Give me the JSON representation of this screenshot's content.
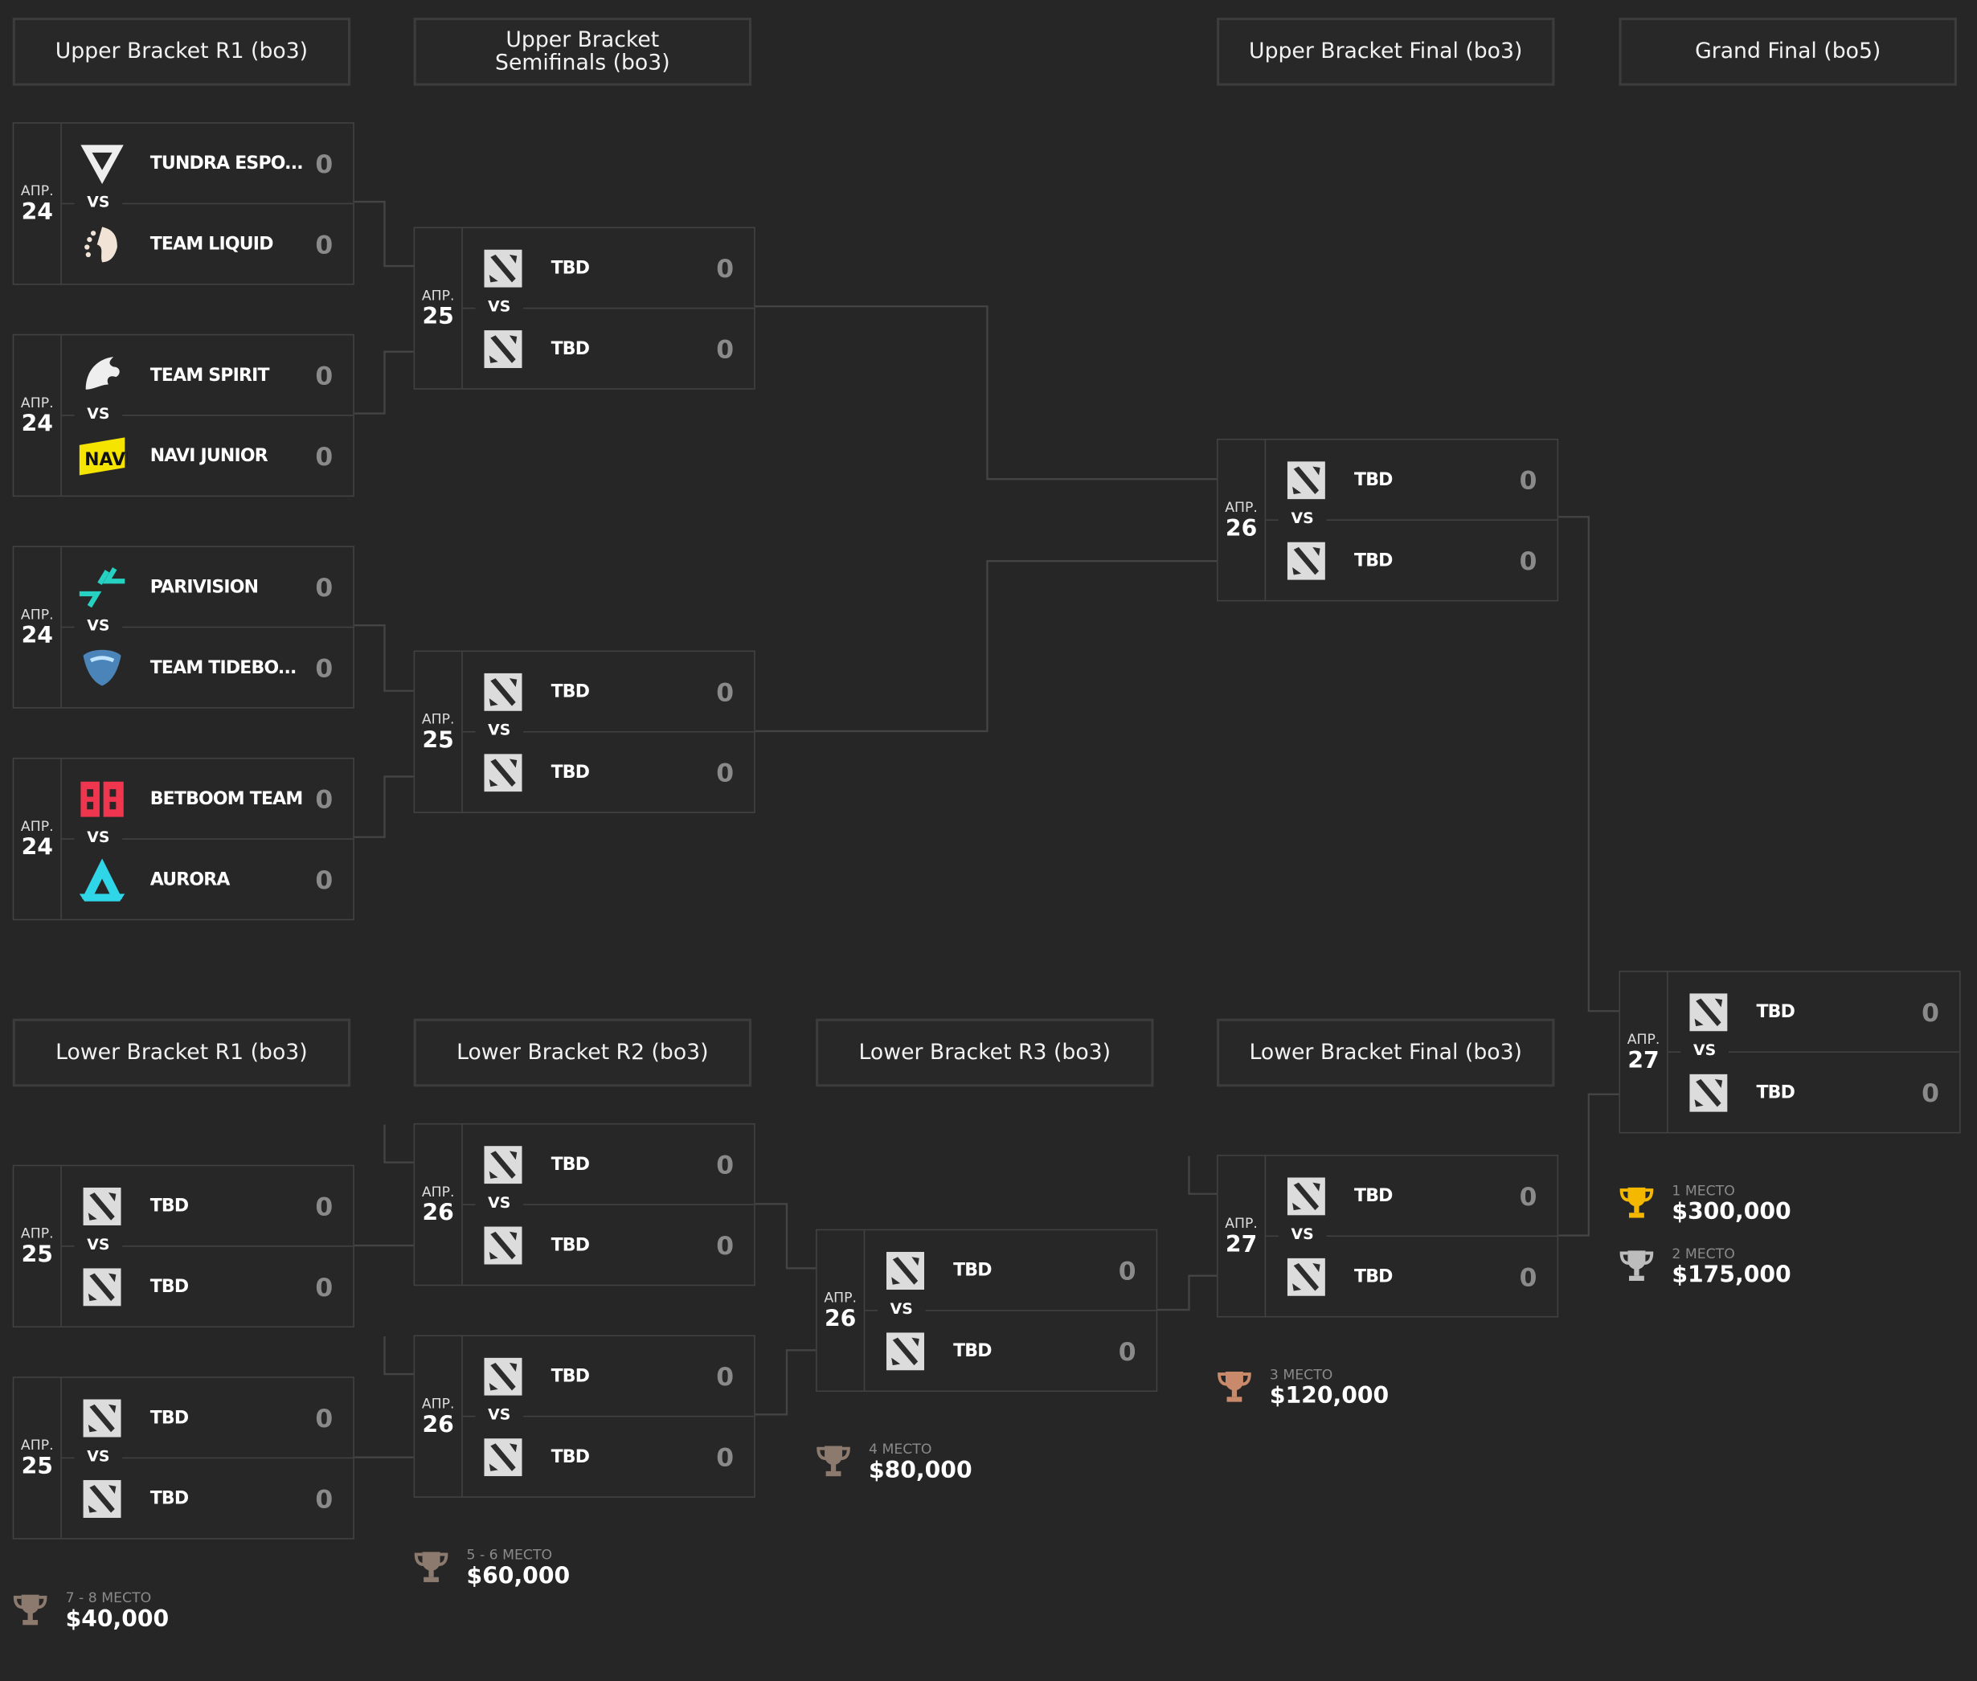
{
  "colors": {
    "background": "#262626",
    "border": "#424242",
    "score": "#8a8a8a",
    "gold": "#f5b800",
    "silver": "#bdbdbd",
    "bronze": "#c88a6a",
    "muted_bronze": "#8c7a6e"
  },
  "headers": [
    "Upper Bracket R1 (bo3)",
    "Upper Bracket Semifinals (bo3)",
    "Upper Bracket Final (bo3)",
    "Grand Final (bo5)",
    "Lower Bracket R1 (bo3)",
    "Lower Bracket R2 (bo3)",
    "Lower Bracket R3 (bo3)",
    "Lower Bracket Final (bo3)"
  ],
  "vs_label": "VS",
  "matches": [
    {
      "id": "ub-r1-1",
      "month": "АПР.",
      "day": "24",
      "teams": [
        {
          "name": "TUNDRA ESPO...",
          "score": "0",
          "logo": "tundra-logo-icon"
        },
        {
          "name": "TEAM LIQUID",
          "score": "0",
          "logo": "liquid-logo-icon"
        }
      ]
    },
    {
      "id": "ub-r1-2",
      "month": "АПР.",
      "day": "24",
      "teams": [
        {
          "name": "TEAM SPIRIT",
          "score": "0",
          "logo": "spirit-logo-icon"
        },
        {
          "name": "NAVI JUNIOR",
          "score": "0",
          "logo": "navi-logo-icon"
        }
      ]
    },
    {
      "id": "ub-r1-3",
      "month": "АПР.",
      "day": "24",
      "teams": [
        {
          "name": "PARIVISION",
          "score": "0",
          "logo": "parivision-logo-icon"
        },
        {
          "name": "TEAM TIDEBO...",
          "score": "0",
          "logo": "tidebound-logo-icon"
        }
      ]
    },
    {
      "id": "ub-r1-4",
      "month": "АПР.",
      "day": "24",
      "teams": [
        {
          "name": "BETBOOM TEAM",
          "score": "0",
          "logo": "betboom-logo-icon"
        },
        {
          "name": "AURORA",
          "score": "0",
          "logo": "aurora-logo-icon"
        }
      ]
    },
    {
      "id": "ub-sf-1",
      "month": "АПР.",
      "day": "25",
      "teams": [
        {
          "name": "TBD",
          "score": "0",
          "logo": "dota-logo-icon"
        },
        {
          "name": "TBD",
          "score": "0",
          "logo": "dota-logo-icon"
        }
      ]
    },
    {
      "id": "ub-sf-2",
      "month": "АПР.",
      "day": "25",
      "teams": [
        {
          "name": "TBD",
          "score": "0",
          "logo": "dota-logo-icon"
        },
        {
          "name": "TBD",
          "score": "0",
          "logo": "dota-logo-icon"
        }
      ]
    },
    {
      "id": "ub-final",
      "month": "АПР.",
      "day": "26",
      "teams": [
        {
          "name": "TBD",
          "score": "0",
          "logo": "dota-logo-icon"
        },
        {
          "name": "TBD",
          "score": "0",
          "logo": "dota-logo-icon"
        }
      ]
    },
    {
      "id": "grand-final",
      "month": "АПР.",
      "day": "27",
      "teams": [
        {
          "name": "TBD",
          "score": "0",
          "logo": "dota-logo-icon"
        },
        {
          "name": "TBD",
          "score": "0",
          "logo": "dota-logo-icon"
        }
      ]
    },
    {
      "id": "lb-r1-1",
      "month": "АПР.",
      "day": "25",
      "teams": [
        {
          "name": "TBD",
          "score": "0",
          "logo": "dota-logo-icon"
        },
        {
          "name": "TBD",
          "score": "0",
          "logo": "dota-logo-icon"
        }
      ]
    },
    {
      "id": "lb-r1-2",
      "month": "АПР.",
      "day": "25",
      "teams": [
        {
          "name": "TBD",
          "score": "0",
          "logo": "dota-logo-icon"
        },
        {
          "name": "TBD",
          "score": "0",
          "logo": "dota-logo-icon"
        }
      ]
    },
    {
      "id": "lb-r2-1",
      "month": "АПР.",
      "day": "26",
      "teams": [
        {
          "name": "TBD",
          "score": "0",
          "logo": "dota-logo-icon"
        },
        {
          "name": "TBD",
          "score": "0",
          "logo": "dota-logo-icon"
        }
      ]
    },
    {
      "id": "lb-r2-2",
      "month": "АПР.",
      "day": "26",
      "teams": [
        {
          "name": "TBD",
          "score": "0",
          "logo": "dota-logo-icon"
        },
        {
          "name": "TBD",
          "score": "0",
          "logo": "dota-logo-icon"
        }
      ]
    },
    {
      "id": "lb-r3",
      "month": "АПР.",
      "day": "26",
      "teams": [
        {
          "name": "TBD",
          "score": "0",
          "logo": "dota-logo-icon"
        },
        {
          "name": "TBD",
          "score": "0",
          "logo": "dota-logo-icon"
        }
      ]
    },
    {
      "id": "lb-final",
      "month": "АПР.",
      "day": "27",
      "teams": [
        {
          "name": "TBD",
          "score": "0",
          "logo": "dota-logo-icon"
        },
        {
          "name": "TBD",
          "score": "0",
          "logo": "dota-logo-icon"
        }
      ]
    }
  ],
  "prizes": [
    {
      "place": "1 МЕСТО",
      "amount": "$300,000",
      "trophy": "gold"
    },
    {
      "place": "2 МЕСТО",
      "amount": "$175,000",
      "trophy": "silver"
    },
    {
      "place": "3 МЕСТО",
      "amount": "$120,000",
      "trophy": "bronze"
    },
    {
      "place": "4 МЕСТО",
      "amount": "$80,000",
      "trophy": "muted_bronze"
    },
    {
      "place": "5 - 6 МЕСТО",
      "amount": "$60,000",
      "trophy": "muted_bronze"
    },
    {
      "place": "7 - 8 МЕСТО",
      "amount": "$40,000",
      "trophy": "muted_bronze"
    }
  ]
}
